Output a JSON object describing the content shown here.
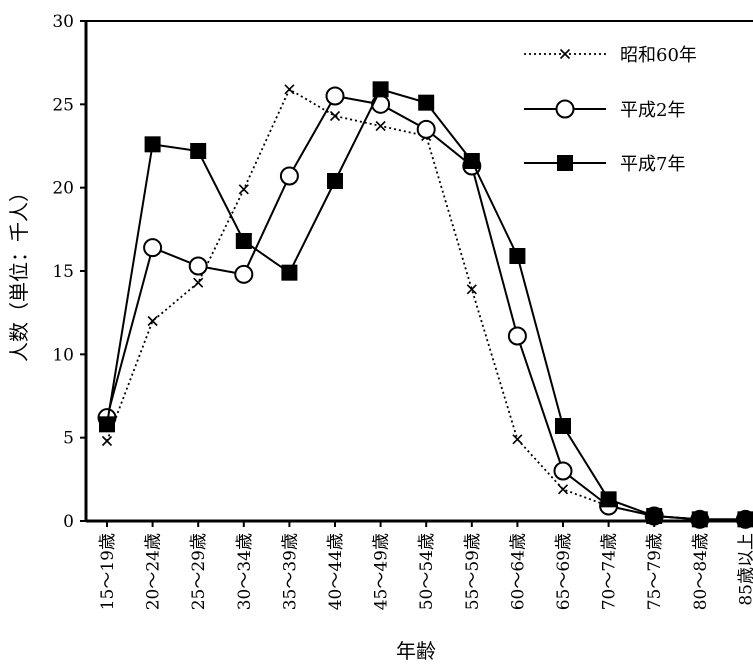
{
  "chart_data": {
    "type": "line",
    "xlabel": "年齢",
    "ylabel": "人数（単位：千人）",
    "ylim": [
      0,
      30
    ],
    "yticks": [
      "0",
      "5",
      "10",
      "15",
      "20",
      "25",
      "30"
    ],
    "grid": false,
    "legend_position": "top-right",
    "categories": [
      "15〜19歳",
      "20〜24歳",
      "25〜29歳",
      "30〜34歳",
      "35〜39歳",
      "40〜44歳",
      "45〜49歳",
      "50〜54歳",
      "55〜59歳",
      "60〜64歳",
      "65〜69歳",
      "70〜74歳",
      "75〜79歳",
      "80〜84歳",
      "85歳以上"
    ],
    "series": [
      {
        "name": "昭和60年",
        "style": "dotted",
        "marker": "x",
        "color": "#000000",
        "values": [
          4.8,
          12.0,
          14.3,
          19.9,
          25.9,
          24.3,
          23.7,
          23.1,
          13.9,
          4.9,
          1.9,
          0.9,
          0.3,
          0.1,
          0.1
        ]
      },
      {
        "name": "平成2年",
        "style": "solid",
        "marker": "circle",
        "color": "#000000",
        "values": [
          6.2,
          16.4,
          15.3,
          14.8,
          20.7,
          25.5,
          25.0,
          23.5,
          21.3,
          11.1,
          3.0,
          0.9,
          0.3,
          0.1,
          0.1
        ]
      },
      {
        "name": "平成7年",
        "style": "solid",
        "marker": "square",
        "color": "#000000",
        "values": [
          5.8,
          22.6,
          22.2,
          16.8,
          14.9,
          20.4,
          25.9,
          25.1,
          21.6,
          15.9,
          5.7,
          1.3,
          0.3,
          0.1,
          0.1
        ]
      }
    ]
  }
}
